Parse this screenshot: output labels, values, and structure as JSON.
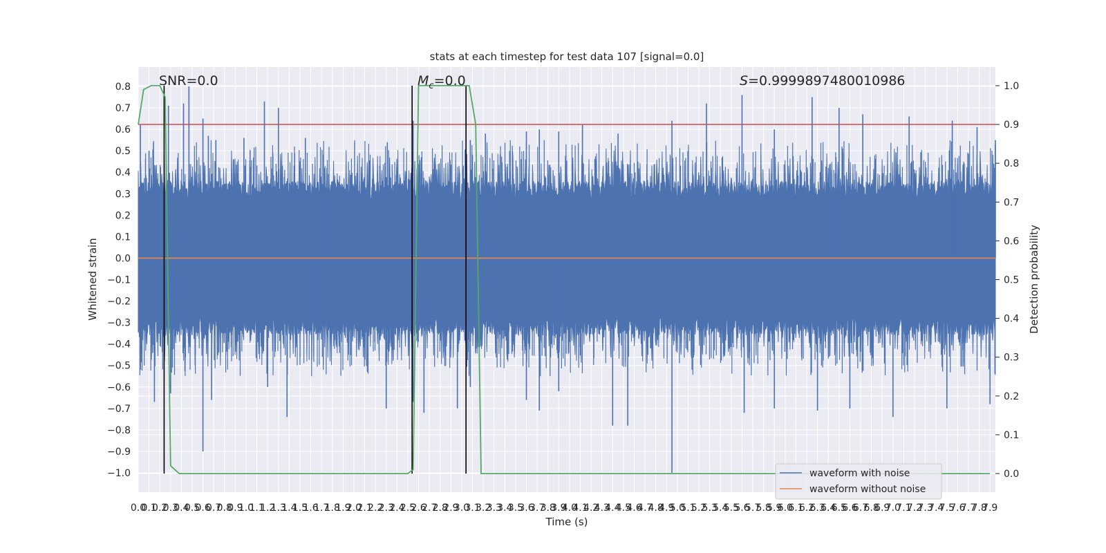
{
  "chart_data": {
    "type": "line",
    "title": "stats at each timestep for test data 107 [signal=0.0]",
    "xlabel": "Time (s)",
    "ylabel": "Whitened strain",
    "y2label": "Detection probability",
    "xlim": [
      0.0,
      7.95
    ],
    "ylim": [
      -1.09,
      0.89
    ],
    "y2lim": [
      -0.048,
      1.048
    ],
    "x_ticks": [
      "0.0",
      "0.1",
      "0.2",
      "0.3",
      "0.4",
      "0.5",
      "0.6",
      "0.7",
      "0.8",
      "0.9",
      "1.0",
      "1.1",
      "1.2",
      "1.3",
      "1.4",
      "1.5",
      "1.6",
      "1.7",
      "1.8",
      "1.9",
      "2.0",
      "2.1",
      "2.2",
      "2.3",
      "2.4",
      "2.5",
      "2.6",
      "2.7",
      "2.8",
      "2.9",
      "3.0",
      "3.1",
      "3.2",
      "3.3",
      "3.4",
      "3.5",
      "3.6",
      "3.7",
      "3.8",
      "3.9",
      "4.0",
      "4.1",
      "4.2",
      "4.3",
      "4.4",
      "4.5",
      "4.6",
      "4.7",
      "4.8",
      "4.9",
      "5.0",
      "5.1",
      "5.2",
      "5.3",
      "5.4",
      "5.5",
      "5.6",
      "5.7",
      "5.8",
      "5.9",
      "6.0",
      "6.1",
      "6.2",
      "6.3",
      "6.4",
      "6.5",
      "6.6",
      "6.7",
      "6.8",
      "6.9",
      "7.0",
      "7.1",
      "7.2",
      "7.3",
      "7.4",
      "7.5",
      "7.6",
      "7.7",
      "7.8",
      "7.9"
    ],
    "y_ticks": [
      "0.8",
      "0.7",
      "0.6",
      "0.5",
      "0.4",
      "0.3",
      "0.2",
      "0.1",
      "0.0",
      "−0.1",
      "−0.2",
      "−0.3",
      "−0.4",
      "−0.5",
      "−0.6",
      "−0.7",
      "−0.8",
      "−0.9",
      "−1.0"
    ],
    "y2_ticks": [
      "1.0",
      "0.9",
      "0.8",
      "0.7",
      "0.6",
      "0.5",
      "0.4",
      "0.3",
      "0.2",
      "0.1",
      "0.0"
    ],
    "series": [
      {
        "name": "waveform with noise",
        "color": "#4c72b0",
        "description": "dense whitened noise, roughly uniform amplitude (~±0.3 typical, peaks to 0.8 and -1.0)",
        "peaks": [
          [
            0.02,
            0.62
          ],
          [
            0.1,
            0.5
          ],
          [
            0.28,
            0.71
          ],
          [
            0.42,
            0.72
          ],
          [
            0.47,
            0.8
          ],
          [
            0.6,
            0.65
          ],
          [
            0.65,
            0.57
          ],
          [
            0.72,
            0.55
          ],
          [
            0.98,
            0.56
          ],
          [
            1.17,
            0.73
          ],
          [
            1.3,
            0.7
          ],
          [
            1.55,
            0.56
          ],
          [
            2.31,
            0.54
          ],
          [
            2.55,
            0.64
          ],
          [
            3.08,
            0.55
          ],
          [
            3.22,
            0.58
          ],
          [
            3.6,
            0.59
          ],
          [
            3.72,
            0.6
          ],
          [
            3.9,
            0.59
          ],
          [
            4.12,
            0.62
          ],
          [
            4.45,
            0.58
          ],
          [
            4.95,
            0.64
          ],
          [
            5.27,
            0.72
          ],
          [
            5.6,
            0.76
          ],
          [
            5.9,
            0.6
          ],
          [
            6.25,
            0.75
          ],
          [
            6.5,
            0.7
          ],
          [
            6.72,
            0.67
          ],
          [
            7.15,
            0.66
          ],
          [
            7.55,
            0.64
          ],
          [
            7.78,
            0.61
          ],
          [
            7.95,
            0.55
          ]
        ],
        "troughs": [
          [
            0.02,
            -0.52
          ],
          [
            0.15,
            -0.67
          ],
          [
            0.3,
            -0.63
          ],
          [
            0.6,
            -0.9
          ],
          [
            0.68,
            -0.66
          ],
          [
            1.2,
            -0.6
          ],
          [
            1.38,
            -0.74
          ],
          [
            2.3,
            -0.7
          ],
          [
            2.55,
            -0.67
          ],
          [
            2.65,
            -0.72
          ],
          [
            2.96,
            -0.7
          ],
          [
            3.08,
            -0.6
          ],
          [
            3.6,
            -0.66
          ],
          [
            3.72,
            -0.71
          ],
          [
            3.9,
            -0.62
          ],
          [
            4.4,
            -0.78
          ],
          [
            4.54,
            -0.78
          ],
          [
            4.95,
            -1.0
          ],
          [
            5.62,
            -0.72
          ],
          [
            5.9,
            -0.7
          ],
          [
            6.3,
            -0.71
          ],
          [
            6.6,
            -0.7
          ],
          [
            7.0,
            -0.74
          ],
          [
            7.5,
            -0.7
          ],
          [
            7.9,
            -0.68
          ]
        ]
      },
      {
        "name": "waveform without noise",
        "color": "#dd8452",
        "x": [
          0.0,
          7.95
        ],
        "values": [
          0.0,
          0.0
        ]
      },
      {
        "name": "detection probability",
        "color": "#55a868",
        "axis": "right",
        "x": [
          0.0,
          0.05,
          0.12,
          0.2,
          0.25,
          0.3,
          0.38,
          2.5,
          2.55,
          2.6,
          3.03,
          3.07,
          3.13,
          3.18,
          7.9
        ],
        "values": [
          0.9,
          0.99,
          1.0,
          1.0,
          0.97,
          0.02,
          0.0,
          0.0,
          0.01,
          1.0,
          1.0,
          1.0,
          0.9,
          0.0,
          0.0
        ]
      }
    ],
    "threshold": {
      "value": 0.9,
      "axis": "right",
      "color": "#c44e52"
    },
    "vlines": [
      0.24,
      2.54,
      3.04
    ],
    "annotations": {
      "snr": "SNR=0.0",
      "mc_symbol": "M",
      "mc_subscript": "c",
      "mc_value": "=0.0",
      "s_symbol": "S",
      "s_value": "=0.9999897480010986"
    },
    "legend": {
      "position": "lower-right",
      "entries": [
        "waveform with noise",
        "waveform without noise"
      ]
    }
  }
}
